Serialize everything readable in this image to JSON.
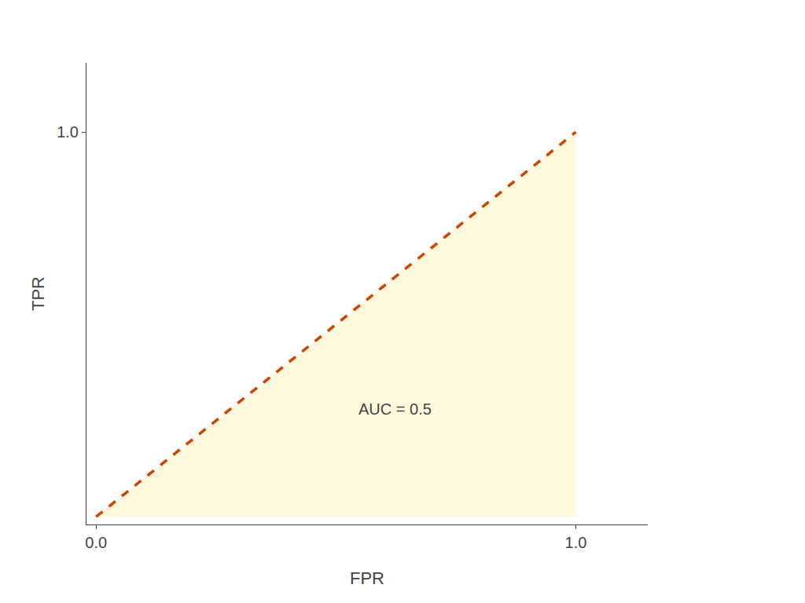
{
  "chart_data": {
    "type": "area",
    "x": [
      0,
      1
    ],
    "series": [
      {
        "type": "area",
        "color": "#FFF8DC",
        "values": [
          0,
          1
        ]
      },
      {
        "type": "line",
        "color": "#CC4400",
        "line_style": "dashed",
        "values": [
          0,
          1
        ]
      }
    ],
    "xlabel": "FPR",
    "ylabel": "TPR",
    "annotation": "AUC = 0.5",
    "xlim": [
      -0.02,
      1.15
    ],
    "xticks": [
      {
        "value": 0.0,
        "label": "0.0"
      },
      {
        "value": 1.0,
        "label": "1.0"
      }
    ],
    "ylim": [
      -0.02,
      1.18
    ],
    "yticks": [
      {
        "value": 1.0,
        "label": "1.0"
      }
    ],
    "grid": false,
    "legend": "none"
  }
}
